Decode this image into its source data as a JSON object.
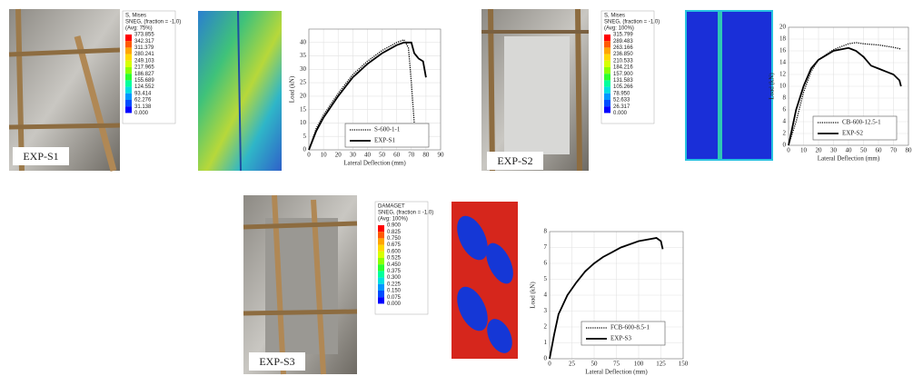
{
  "panels": [
    {
      "label": "EXP-S1",
      "contour_legend": {
        "lines": [
          "S, Mises",
          "SNEG, (fraction = -1.0)",
          "(Avg: 75%)"
        ],
        "values": [
          "373.855",
          "342.317",
          "311.379",
          "280.241",
          "249.103",
          "217.965",
          "186.827",
          "155.689",
          "124.552",
          "93.414",
          "62.276",
          "31.138",
          "0.000"
        ]
      }
    },
    {
      "label": "EXP-S2",
      "contour_legend": {
        "lines": [
          "S, Mises",
          "SNEG, (fraction = -1.0)",
          "(Avg: 100%)"
        ],
        "values": [
          "315.799",
          "289.483",
          "263.166",
          "236.850",
          "210.533",
          "184.216",
          "157.900",
          "131.583",
          "105.266",
          "78.950",
          "52.633",
          "26.317",
          "0.000"
        ]
      }
    },
    {
      "label": "EXP-S3",
      "contour_legend": {
        "lines": [
          "DAMAGET",
          "SNEG, (fraction = -1.0)",
          "(Avg: 100%)"
        ],
        "values": [
          "0.900",
          "0.825",
          "0.750",
          "0.675",
          "0.600",
          "0.525",
          "0.450",
          "0.375",
          "0.300",
          "0.225",
          "0.150",
          "0.075",
          "0.000"
        ]
      }
    }
  ],
  "chart_data": [
    {
      "type": "line",
      "xlabel": "Lateral Deflection (mm)",
      "ylabel": "Load (kN)",
      "grid": true,
      "xlim": [
        0,
        90
      ],
      "xticks": [
        0,
        10,
        20,
        30,
        40,
        50,
        60,
        70,
        80,
        90
      ],
      "ylim": [
        0,
        45
      ],
      "yticks": [
        0,
        5,
        10,
        15,
        20,
        25,
        30,
        35,
        40
      ],
      "series": [
        {
          "name": "S-600-1-1",
          "style": "dotted",
          "color": "#000000",
          "x": [
            0,
            5,
            10,
            20,
            30,
            40,
            50,
            60,
            65,
            68,
            70,
            72
          ],
          "values": [
            0,
            8,
            13,
            21,
            28,
            33,
            37,
            40,
            41,
            38,
            25,
            10
          ]
        },
        {
          "name": "EXP-S1",
          "style": "solid",
          "color": "#000000",
          "x": [
            0,
            5,
            10,
            20,
            30,
            40,
            50,
            60,
            65,
            70,
            72,
            75,
            78,
            80
          ],
          "values": [
            0,
            7,
            12,
            20,
            27,
            32,
            36,
            39,
            40,
            40,
            36,
            34,
            33,
            27
          ]
        }
      ]
    },
    {
      "type": "line",
      "xlabel": "Lateral Deflection (mm)",
      "ylabel": "Load (kN)",
      "grid": true,
      "xlim": [
        0,
        80
      ],
      "xticks": [
        0,
        10,
        20,
        30,
        40,
        50,
        60,
        70,
        80
      ],
      "ylim": [
        0,
        20
      ],
      "yticks": [
        0,
        2,
        4,
        6,
        8,
        10,
        12,
        14,
        16,
        18,
        20
      ],
      "series": [
        {
          "name": "CB-600-12.5-1",
          "style": "dotted",
          "color": "#000000",
          "x": [
            0,
            5,
            10,
            15,
            20,
            30,
            40,
            45,
            50,
            60,
            70,
            75
          ],
          "values": [
            0,
            4,
            9,
            12.5,
            14.5,
            16.2,
            17.2,
            17.4,
            17.2,
            17,
            16.6,
            16.3
          ]
        },
        {
          "name": "EXP-S2",
          "style": "solid",
          "color": "#000000",
          "x": [
            0,
            5,
            10,
            15,
            20,
            30,
            40,
            45,
            50,
            55,
            60,
            65,
            70,
            74,
            75
          ],
          "values": [
            0,
            6,
            10,
            13,
            14.5,
            16,
            16.5,
            16,
            15,
            13.5,
            13,
            12.5,
            12,
            11,
            10
          ]
        }
      ]
    },
    {
      "type": "line",
      "xlabel": "Lateral Deflection (mm)",
      "ylabel": "Load (kN)",
      "grid": true,
      "xlim": [
        0,
        150
      ],
      "xticks": [
        0,
        25,
        50,
        75,
        100,
        125,
        150
      ],
      "ylim": [
        0,
        8
      ],
      "yticks": [
        0,
        1,
        2,
        3,
        4,
        5,
        6,
        7,
        8
      ],
      "series": [
        {
          "name": "FCB-600-8.5-1",
          "style": "dotted",
          "color": "#000000",
          "x": [],
          "values": []
        },
        {
          "name": "EXP-S3",
          "style": "solid",
          "color": "#000000",
          "x": [
            0,
            5,
            10,
            20,
            30,
            40,
            50,
            60,
            70,
            80,
            90,
            100,
            110,
            120,
            125,
            127
          ],
          "values": [
            0,
            1.5,
            2.8,
            4,
            4.8,
            5.5,
            6,
            6.4,
            6.7,
            7,
            7.2,
            7.4,
            7.5,
            7.6,
            7.4,
            6.9
          ]
        }
      ]
    }
  ]
}
